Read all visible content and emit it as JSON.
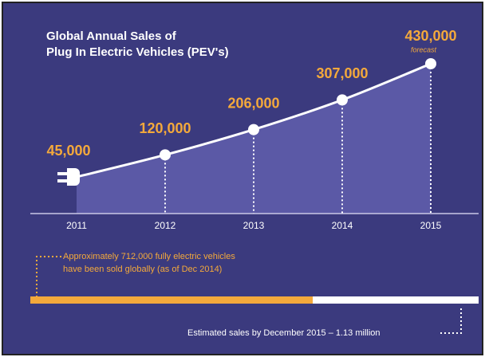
{
  "chart_data": {
    "type": "area",
    "title": [
      "Global Annual Sales of",
      "Plug In Electric Vehicles (PEV's)"
    ],
    "categories": [
      "2011",
      "2012",
      "2013",
      "2014",
      "2015"
    ],
    "values": [
      45000,
      120000,
      206000,
      307000,
      430000
    ],
    "value_labels": [
      "45,000",
      "120,000",
      "206,000",
      "307,000",
      "430,000"
    ],
    "annotations": {
      "forecast": "forecast",
      "sold_text": [
        "Approximately 712,000 fully electric vehicles",
        "have been sold globally (as of Dec 2014)"
      ],
      "estimate_text": "Estimated sales by December 2015 – 1.13 million"
    },
    "progress": {
      "sold": 712000,
      "estimated_total": 1130000,
      "sold_color": "#f4a93b",
      "rest_color": "#ffffff"
    },
    "background": "#3b3a7e",
    "area_color": "#5b59a6",
    "line_color": "#ffffff",
    "label_color": "#f4a93b"
  }
}
